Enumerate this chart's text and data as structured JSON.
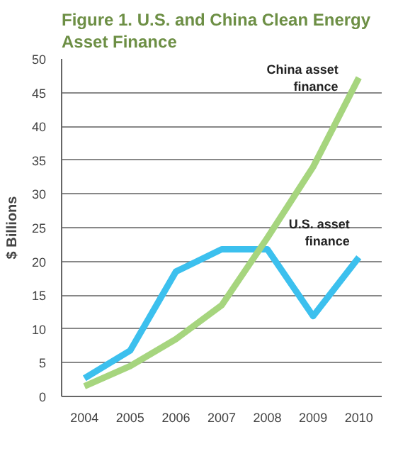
{
  "chart_data": {
    "type": "line",
    "title": "Figure 1. U.S. and China Clean Energy Asset Finance",
    "ylabel": "$ Billions",
    "categories": [
      "2004",
      "2005",
      "2006",
      "2007",
      "2008",
      "2009",
      "2010"
    ],
    "series": [
      {
        "name": "U.S. asset finance",
        "color": "#3cc0ee",
        "values": [
          2.7,
          6.8,
          18.5,
          21.8,
          21.8,
          11.9,
          20.6
        ]
      },
      {
        "name": "China asset finance",
        "color": "#a6d57e",
        "values": [
          1.5,
          4.5,
          8.5,
          13.5,
          23.5,
          34,
          47.2
        ]
      }
    ],
    "ylim": [
      0,
      50
    ],
    "yticks": [
      0,
      5,
      10,
      15,
      20,
      25,
      30,
      35,
      40,
      45,
      50
    ],
    "grid": "y",
    "line_style": "solid",
    "marker": "none"
  }
}
